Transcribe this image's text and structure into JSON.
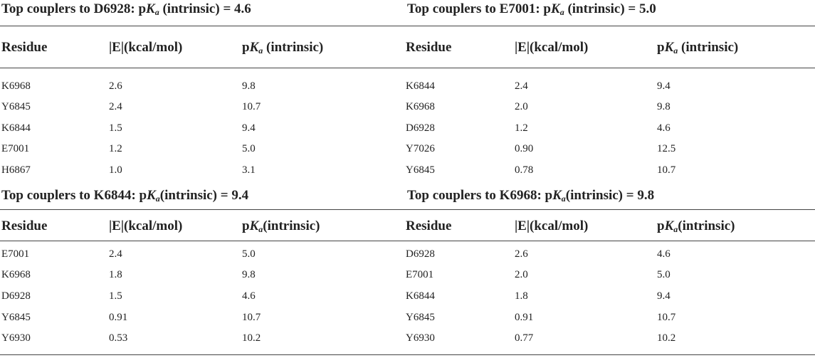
{
  "tables": [
    {
      "title_prefix": "Top couplers to D6928: p",
      "title_k": "K",
      "title_sub": "a",
      "title_suffix": " (intrinsic) = 4.6",
      "headers": {
        "residue": "Residue",
        "energy": "|E|(kcal/mol)",
        "pka_prefix": "p",
        "pka_k": "K",
        "pka_sub": "a",
        "pka_suffix": " (intrinsic)"
      },
      "rows": [
        [
          "K6968",
          "2.6",
          "9.8"
        ],
        [
          "Y6845",
          "2.4",
          "10.7"
        ],
        [
          "K6844",
          "1.5",
          "9.4"
        ],
        [
          "E7001",
          "1.2",
          "5.0"
        ],
        [
          "H6867",
          "1.0",
          "3.1"
        ]
      ]
    },
    {
      "title_prefix": "Top couplers to E7001: p",
      "title_k": "K",
      "title_sub": "a",
      "title_suffix": " (intrinsic) = 5.0",
      "headers": {
        "residue": "Residue",
        "energy": "|E|(kcal/mol)",
        "pka_prefix": "p",
        "pka_k": "K",
        "pka_sub": "a",
        "pka_suffix": " (intrinsic)"
      },
      "rows": [
        [
          "K6844",
          "2.4",
          "9.4"
        ],
        [
          "K6968",
          "2.0",
          "9.8"
        ],
        [
          "D6928",
          "1.2",
          "4.6"
        ],
        [
          "Y7026",
          "0.90",
          "12.5"
        ],
        [
          "Y6845",
          "0.78",
          "10.7"
        ]
      ]
    },
    {
      "title_prefix": "Top couplers to K6844: p",
      "title_k": "K",
      "title_sub": "a",
      "title_suffix": "(intrinsic) = 9.4",
      "headers": {
        "residue": "Residue",
        "energy": "|E|(kcal/mol)",
        "pka_prefix": "p",
        "pka_k": "K",
        "pka_sub": "a",
        "pka_suffix": "(intrinsic)"
      },
      "rows": [
        [
          "E7001",
          "2.4",
          "5.0"
        ],
        [
          "K6968",
          "1.8",
          "9.8"
        ],
        [
          "D6928",
          "1.5",
          "4.6"
        ],
        [
          "Y6845",
          "0.91",
          "10.7"
        ],
        [
          "Y6930",
          "0.53",
          "10.2"
        ]
      ]
    },
    {
      "title_prefix": "Top couplers to K6968: p",
      "title_k": "K",
      "title_sub": "a",
      "title_suffix": "(intrinsic) = 9.8",
      "headers": {
        "residue": "Residue",
        "energy": "|E|(kcal/mol)",
        "pka_prefix": "p",
        "pka_k": "K",
        "pka_sub": "a",
        "pka_suffix": "(intrinsic)"
      },
      "rows": [
        [
          "D6928",
          "2.6",
          "4.6"
        ],
        [
          "E7001",
          "2.0",
          "5.0"
        ],
        [
          "K6844",
          "1.8",
          "9.4"
        ],
        [
          "Y6845",
          "0.91",
          "10.7"
        ],
        [
          "Y6930",
          "0.77",
          "10.2"
        ]
      ]
    }
  ]
}
